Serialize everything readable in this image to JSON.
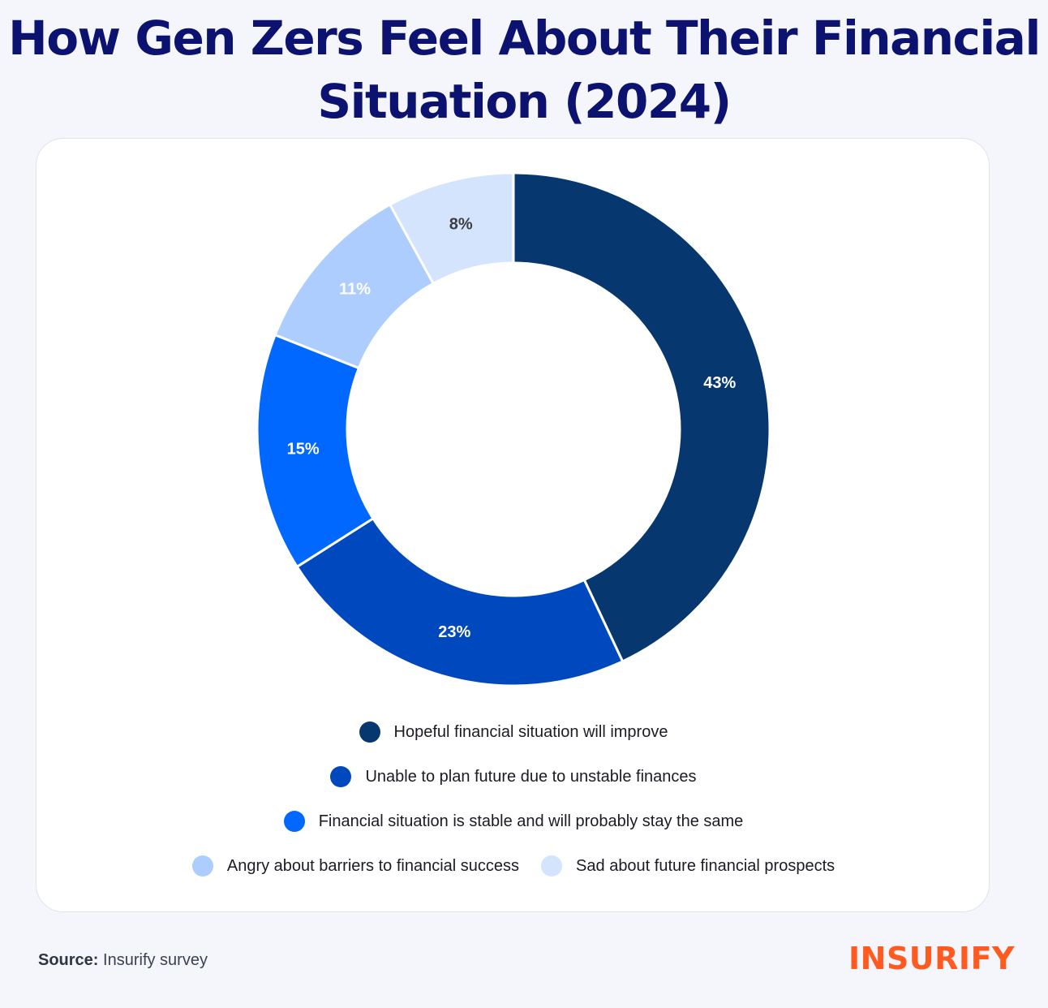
{
  "title": "How Gen Zers Feel About Their Financial Situation (2024)",
  "chart_data": {
    "type": "pie",
    "variant": "donut",
    "title": "How Gen Zers Feel About Their Financial Situation (2024)",
    "categories": [
      "Hopeful financial situation will improve",
      "Unable to plan future due to unstable finances",
      "Financial situation is stable and will probably stay the same",
      "Angry about barriers to financial success",
      "Sad about future financial prospects"
    ],
    "values": [
      43,
      23,
      15,
      11,
      8
    ],
    "value_labels": [
      "43%",
      "23%",
      "15%",
      "11%",
      "8%"
    ],
    "colors": [
      "#06386f",
      "#0048bd",
      "#0067ff",
      "#accdfd",
      "#d4e4fd"
    ],
    "label_colors": [
      "#ffffff",
      "#ffffff",
      "#ffffff",
      "#ffffff",
      "#3d3d44"
    ],
    "legend_position": "bottom"
  },
  "legend": {
    "rows": [
      [
        0
      ],
      [
        1
      ],
      [
        2
      ],
      [
        3,
        4
      ]
    ]
  },
  "footer": {
    "source_label": "Source:",
    "source_text": "Insurify survey",
    "logo_text": "INSURIFY"
  }
}
